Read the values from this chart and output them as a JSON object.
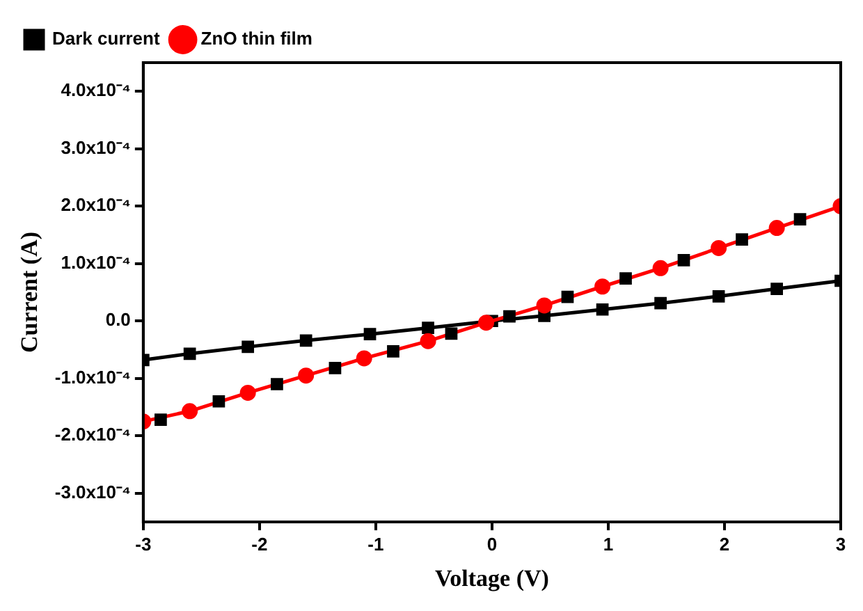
{
  "chart_data": {
    "type": "line",
    "xlabel": "Voltage (V)",
    "ylabel": "Current (A)",
    "xlim": [
      -3,
      3
    ],
    "xticks": [
      -3,
      -2,
      -1,
      0,
      1,
      2,
      3
    ],
    "ylim": [
      -0.00035,
      0.00045
    ],
    "yticks": [
      {
        "value": 0.0004,
        "label": "4.0x10⁻⁴"
      },
      {
        "value": 0.0003,
        "label": "3.0x10⁻⁴"
      },
      {
        "value": 0.0002,
        "label": "2.0x10⁻⁴"
      },
      {
        "value": 0.0001,
        "label": "1.0x10⁻⁴"
      },
      {
        "value": 0,
        "label": "0.0"
      },
      {
        "value": -0.0001,
        "label": "-1.0x10⁻⁴"
      },
      {
        "value": -0.0002,
        "label": "-2.0x10⁻⁴"
      },
      {
        "value": -0.0003,
        "label": "-3.0x10⁻⁴"
      }
    ],
    "legend": "top left",
    "series": [
      {
        "name": "Dark current",
        "color": "#000000",
        "marker": "square",
        "x": [
          -3,
          -2.6,
          -2.1,
          -1.6,
          -1.05,
          -0.55,
          0,
          0.45,
          0.95,
          1.45,
          1.95,
          2.45,
          3
        ],
        "values": [
          -6.8e-05,
          -5.7e-05,
          -4.5e-05,
          -3.4e-05,
          -2.3e-05,
          -1.2e-05,
          0,
          9e-06,
          2e-05,
          3.1e-05,
          4.3e-05,
          5.6e-05,
          7e-05
        ]
      },
      {
        "name": "ZnO thin film",
        "color": "#ff0000",
        "marker": "circle",
        "x": [
          -3,
          -2.6,
          -2.1,
          -1.6,
          -1.1,
          -0.55,
          -0.05,
          0.45,
          0.95,
          1.45,
          1.95,
          2.45,
          3
        ],
        "values": [
          -0.000175,
          -0.000157,
          -0.000125,
          -9.5e-05,
          -6.5e-05,
          -3.5e-05,
          -3e-06,
          2.7e-05,
          6e-05,
          9.2e-05,
          0.000127,
          0.000162,
          0.0002
        ]
      },
      {
        "type": "scatter",
        "color": "#000000",
        "marker": "square",
        "x": [
          -2.85,
          -2.35,
          -1.85,
          -1.35,
          -0.85,
          -0.35,
          0.15,
          0.65,
          1.15,
          1.65,
          2.15,
          2.65
        ],
        "values": [
          -0.000172,
          -0.00014,
          -0.00011,
          -8.2e-05,
          -5.3e-05,
          -2.2e-05,
          8e-06,
          4.2e-05,
          7.4e-05,
          0.000106,
          0.000142,
          0.000177
        ]
      }
    ]
  }
}
